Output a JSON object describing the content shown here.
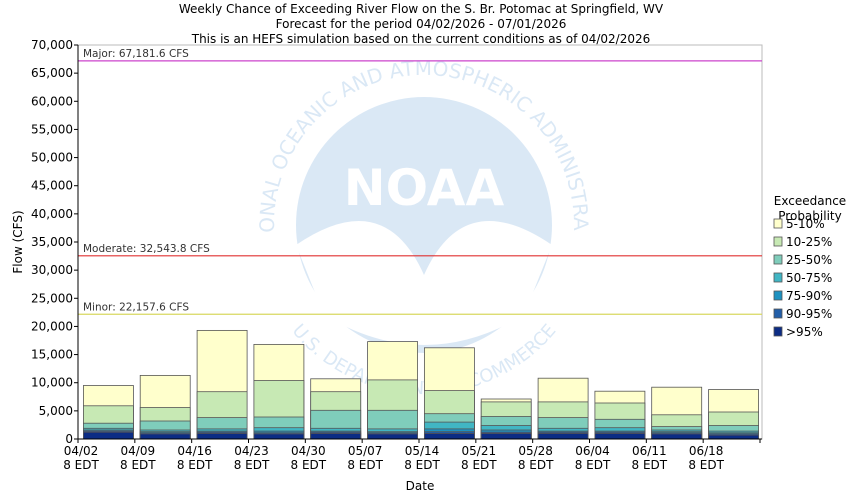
{
  "chart_data": {
    "type": "bar",
    "stacked": true,
    "title": [
      "Weekly Chance of Exceeding River Flow on the S. Br. Potomac at Springfield, WV",
      "Forecast for the period 04/02/2026 - 07/01/2026",
      "This is an HEFS simulation based on the current conditions as of 04/02/2026"
    ],
    "xlabel": "Date",
    "ylabel": "Flow (CFS)",
    "ylim": [
      0,
      70000
    ],
    "yticks": [
      0,
      5000,
      10000,
      15000,
      20000,
      25000,
      30000,
      35000,
      40000,
      45000,
      50000,
      55000,
      60000,
      65000,
      70000
    ],
    "ytick_labels": [
      "0",
      "5,000",
      "10,000",
      "15,000",
      "20,000",
      "25,000",
      "30,000",
      "35,000",
      "40,000",
      "45,000",
      "50,000",
      "55,000",
      "60,000",
      "65,000",
      "70,000"
    ],
    "categories": [
      [
        "04/02",
        "8 EDT"
      ],
      [
        "04/09",
        "8 EDT"
      ],
      [
        "04/16",
        "8 EDT"
      ],
      [
        "04/23",
        "8 EDT"
      ],
      [
        "04/30",
        "8 EDT"
      ],
      [
        "05/07",
        "8 EDT"
      ],
      [
        "05/14",
        "8 EDT"
      ],
      [
        "05/21",
        "8 EDT"
      ],
      [
        "05/28",
        "8 EDT"
      ],
      [
        "06/04",
        "8 EDT"
      ],
      [
        "06/11",
        "8 EDT"
      ],
      [
        "06/18",
        "8 EDT"
      ]
    ],
    "bar_tops_by_level": [
      {
        "name": "5-10%",
        "color": "#ffffcc",
        "values": [
          9500,
          11300,
          19300,
          16800,
          10700,
          17300,
          16200,
          7100,
          10800,
          8500,
          9200,
          8800
        ]
      },
      {
        "name": "10-25%",
        "color": "#c7e9b4",
        "values": [
          5900,
          5600,
          8400,
          10400,
          8400,
          10500,
          8600,
          6600,
          6600,
          6400,
          4300,
          4800
        ]
      },
      {
        "name": "25-50%",
        "color": "#7fcdbb",
        "values": [
          2800,
          3200,
          3800,
          3900,
          5100,
          5100,
          4500,
          4000,
          3800,
          3500,
          2200,
          2400
        ]
      },
      {
        "name": "50-75%",
        "color": "#41b6c4",
        "values": [
          1900,
          1600,
          1800,
          2000,
          1900,
          1800,
          3000,
          2400,
          1900,
          2000,
          1600,
          1400
        ]
      },
      {
        "name": "75-90%",
        "color": "#1d91c0",
        "values": [
          1600,
          1300,
          1400,
          1400,
          1400,
          1300,
          1800,
          1600,
          1400,
          1400,
          1300,
          1100
        ]
      },
      {
        "name": "90-95%",
        "color": "#225ea8",
        "values": [
          1400,
          1100,
          1200,
          1100,
          1200,
          1100,
          1300,
          1200,
          1200,
          1200,
          1100,
          900
        ]
      },
      {
        "name": ">95%",
        "color": "#0c2c84",
        "values": [
          1200,
          900,
          1000,
          900,
          1000,
          900,
          1000,
          1000,
          1000,
          1000,
          900,
          700
        ]
      }
    ],
    "thresholds": [
      {
        "label": "Major: 67,181.6 CFS",
        "value": 67181.6,
        "color": "#cc44cc"
      },
      {
        "label": "Moderate: 32,543.8 CFS",
        "value": 32543.8,
        "color": "#e03030"
      },
      {
        "label": "Minor: 22,157.6 CFS",
        "value": 22157.6,
        "color": "#d8d860"
      }
    ],
    "legend": {
      "title": [
        "Exceedance",
        "Probability"
      ],
      "placement": "right"
    }
  },
  "watermark": {
    "ring_text_top": "NATIONAL OCEANIC AND ATMOSPHERIC ADMINISTRATION",
    "ring_text_bottom": "U.S. DEPARTMENT OF COMMERCE",
    "logo_text": "NOAA"
  }
}
